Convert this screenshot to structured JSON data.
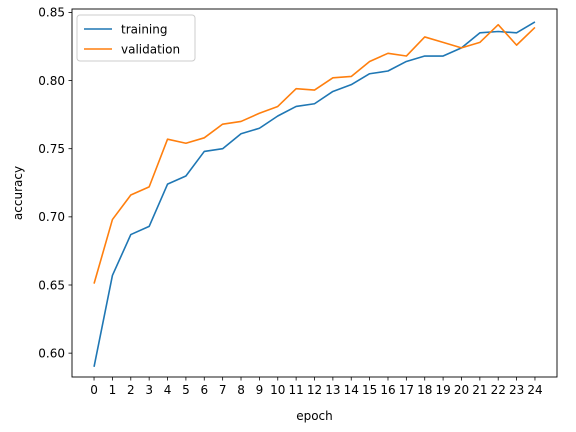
{
  "chart_data": {
    "type": "line",
    "xlabel": "epoch",
    "ylabel": "accuracy",
    "x": [
      0,
      1,
      2,
      3,
      4,
      5,
      6,
      7,
      8,
      9,
      10,
      11,
      12,
      13,
      14,
      15,
      16,
      17,
      18,
      19,
      20,
      21,
      22,
      23,
      24
    ],
    "xticks": [
      "0",
      "1",
      "2",
      "3",
      "4",
      "5",
      "6",
      "7",
      "8",
      "9",
      "10",
      "11",
      "12",
      "13",
      "14",
      "15",
      "16",
      "17",
      "18",
      "19",
      "20",
      "21",
      "22",
      "23",
      "24"
    ],
    "yticks": [
      0.6,
      0.65,
      0.7,
      0.75,
      0.8,
      0.85
    ],
    "ytick_labels": [
      "0.60",
      "0.65",
      "0.70",
      "0.75",
      "0.80",
      "0.85"
    ],
    "xlim": [
      -1.2,
      25.2
    ],
    "ylim": [
      0.5825,
      0.8525
    ],
    "grid": false,
    "legend_position": "top-left",
    "series": [
      {
        "name": "training",
        "color": "#1f77b4",
        "values": [
          0.59,
          0.657,
          0.687,
          0.693,
          0.724,
          0.73,
          0.748,
          0.75,
          0.761,
          0.765,
          0.774,
          0.781,
          0.783,
          0.792,
          0.797,
          0.805,
          0.807,
          0.814,
          0.818,
          0.818,
          0.824,
          0.835,
          0.836,
          0.835,
          0.843
        ]
      },
      {
        "name": "validation",
        "color": "#ff7f0e",
        "values": [
          0.651,
          0.698,
          0.716,
          0.722,
          0.757,
          0.754,
          0.758,
          0.768,
          0.77,
          0.776,
          0.781,
          0.794,
          0.793,
          0.802,
          0.803,
          0.814,
          0.82,
          0.818,
          0.832,
          0.828,
          0.824,
          0.828,
          0.841,
          0.826,
          0.839
        ]
      }
    ]
  }
}
